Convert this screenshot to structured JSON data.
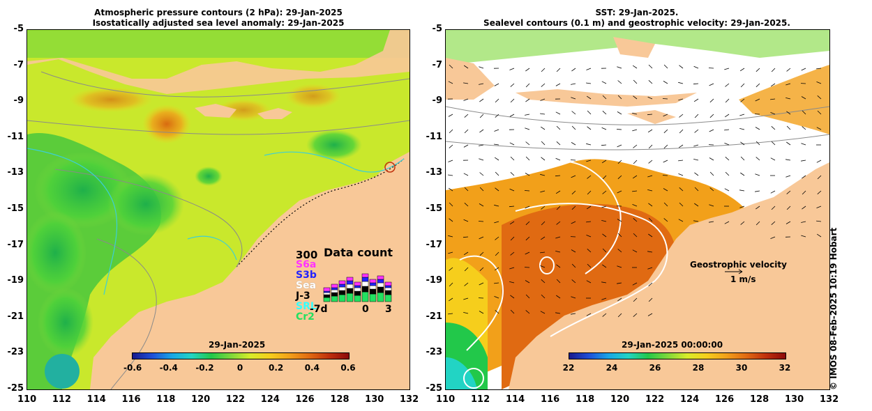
{
  "left_panel": {
    "title_line1": "Atmospheric pressure contours (2 hPa): 29-Jan-2025",
    "title_line2": "Isostatically adjusted sea level anomaly: 29-Jan-2025",
    "colorbar": {
      "date_label": "29-Jan-2025",
      "ticks": [
        "-0.6",
        "-0.4",
        "-0.2",
        "0",
        "0.2",
        "0.4",
        "0.6"
      ],
      "colors": [
        "#1a1a8c",
        "#1f4fd8",
        "#19a6e6",
        "#22d4c4",
        "#22c84a",
        "#7ed83a",
        "#d8ec2a",
        "#f6ce1c",
        "#f2a01a",
        "#e06a12",
        "#c0300c",
        "#8c0a0a"
      ]
    },
    "data_count": {
      "title": "Data count",
      "max_label": "300",
      "legend": [
        {
          "name": "S6a",
          "color": "#ff33ff"
        },
        {
          "name": "S3b",
          "color": "#2222ff"
        },
        {
          "name": "Sea",
          "color": "#ffffff"
        },
        {
          "name": "J-3",
          "color": "#000000"
        },
        {
          "name": "SRL",
          "color": "#33ffff"
        },
        {
          "name": "Cr2",
          "color": "#22e060"
        }
      ],
      "x_labels": [
        "-7d",
        "0",
        "3"
      ]
    }
  },
  "right_panel": {
    "title_line1": "SST: 29-Jan-2025.",
    "title_line2": "Sealevel contours (0.1 m) and geostrophic velocity: 29-Jan-2025.",
    "colorbar": {
      "date_label": "29-Jan-2025 00:00:00",
      "ticks": [
        "22",
        "24",
        "26",
        "28",
        "30",
        "32"
      ],
      "colors": [
        "#1a1a8c",
        "#1f4fd8",
        "#19a6e6",
        "#22d4c4",
        "#22c84a",
        "#7ed83a",
        "#d8ec2a",
        "#f6ce1c",
        "#f2a01a",
        "#e06a12",
        "#c0300c",
        "#8c0a0a"
      ]
    },
    "velocity_label_line1": "Geostrophic velocity",
    "velocity_label_line2": "1 m/s"
  },
  "axes": {
    "longitude_ticks": [
      "110",
      "112",
      "114",
      "116",
      "118",
      "120",
      "122",
      "124",
      "126",
      "128",
      "130",
      "132"
    ],
    "latitude_ticks": [
      "-5",
      "-7",
      "-9",
      "-11",
      "-13",
      "-15",
      "-17",
      "-19",
      "-21",
      "-23",
      "-25"
    ]
  },
  "credit": "© IMOS 08-Feb-2025 10:19 Hobart",
  "colors": {
    "land": "#f8c898",
    "ocean_yellow": "#d8ec2a",
    "ocean_green": "#22c84a",
    "sst_orange": "#f2a01a"
  }
}
